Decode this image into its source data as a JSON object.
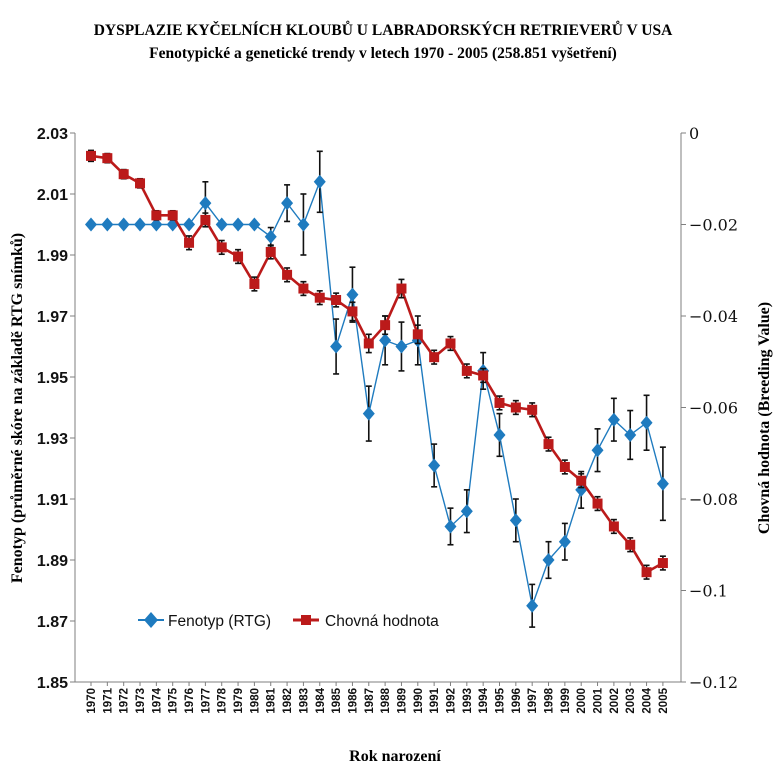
{
  "chart_data": {
    "type": "line",
    "title": "DYSPLAZIE KYČELNÍCH KLOUBŮ U LABRADORSKÝCH RETRIEVERŮ V USA",
    "subtitle": "Fenotypické a genetické trendy v letech 1970 - 2005 (258.851 vyšetření)",
    "xlabel": "Rok narození",
    "ylabel": "Fenotyp (průměrné skóre na základě RTG snímků)",
    "ylabel_right": "Chovná hodnota (Breeding Value)",
    "x": [
      "1970",
      "1971",
      "1972",
      "1973",
      "1974",
      "1975",
      "1976",
      "1977",
      "1978",
      "1979",
      "1980",
      "1981",
      "1982",
      "1983",
      "1984",
      "1985",
      "1986",
      "1987",
      "1988",
      "1989",
      "1990",
      "1991",
      "1992",
      "1993",
      "1994",
      "1995",
      "1996",
      "1997",
      "1998",
      "1999",
      "2000",
      "2001",
      "2002",
      "2003",
      "2004",
      "2005"
    ],
    "ylim": [
      1.85,
      2.03
    ],
    "yticks": [
      "2.03",
      "2.01",
      "1.99",
      "1.97",
      "1.95",
      "1.93",
      "1.91",
      "1.89",
      "1.87",
      "1.85"
    ],
    "ylim_right": [
      -0.12,
      0
    ],
    "yticks_right": [
      "0",
      "−0.02",
      "−0.04",
      "−0.06",
      "−0.08",
      "−0.1",
      "−0.12"
    ],
    "legend_position": "bottom-left",
    "grid": false,
    "series": [
      {
        "name": "Fenotyp (RTG)",
        "axis": "left",
        "color": "#1f7bbf",
        "marker": "diamond",
        "values": [
          2.0,
          2.0,
          2.0,
          2.0,
          2.0,
          2.0,
          2.0,
          2.007,
          2.0,
          2.0,
          2.0,
          1.996,
          2.007,
          2.0,
          2.014,
          1.96,
          1.977,
          1.938,
          1.962,
          1.96,
          1.962,
          1.921,
          1.901,
          1.906,
          1.952,
          1.931,
          1.903,
          1.875,
          1.89,
          1.896,
          1.913,
          1.926,
          1.936,
          1.931,
          1.935,
          1.915
        ],
        "err": [
          0,
          0,
          0,
          0,
          0,
          0,
          0,
          0.007,
          0,
          0,
          0,
          0.003,
          0.006,
          0.01,
          0.01,
          0.009,
          0.009,
          0.009,
          0.008,
          0.008,
          0.008,
          0.007,
          0.006,
          0.007,
          0.006,
          0.007,
          0.007,
          0.007,
          0.006,
          0.006,
          0.006,
          0.007,
          0.007,
          0.008,
          0.009,
          0.012
        ]
      },
      {
        "name": "Chovná hodnota",
        "axis": "right",
        "color": "#bb1a1a",
        "marker": "square",
        "values": [
          -0.005,
          -0.0055,
          -0.009,
          -0.011,
          -0.018,
          -0.018,
          -0.024,
          -0.019,
          -0.025,
          -0.027,
          -0.033,
          -0.026,
          -0.031,
          -0.034,
          -0.036,
          -0.0365,
          -0.039,
          -0.046,
          -0.042,
          -0.034,
          -0.044,
          -0.049,
          -0.046,
          -0.052,
          -0.053,
          -0.059,
          -0.06,
          -0.0605,
          -0.068,
          -0.073,
          -0.076,
          -0.081,
          -0.086,
          -0.09,
          -0.096,
          -0.094
        ],
        "err": [
          0.0012,
          0.001,
          0.001,
          0.001,
          0.001,
          0.001,
          0.0015,
          0.0015,
          0.0015,
          0.0015,
          0.0015,
          0.0015,
          0.0015,
          0.0015,
          0.0015,
          0.0015,
          0.002,
          0.002,
          0.002,
          0.002,
          0.002,
          0.0015,
          0.0015,
          0.0015,
          0.0015,
          0.0015,
          0.0015,
          0.0015,
          0.0015,
          0.0015,
          0.0015,
          0.0015,
          0.0015,
          0.0015,
          0.0015,
          0.0015
        ]
      }
    ]
  }
}
